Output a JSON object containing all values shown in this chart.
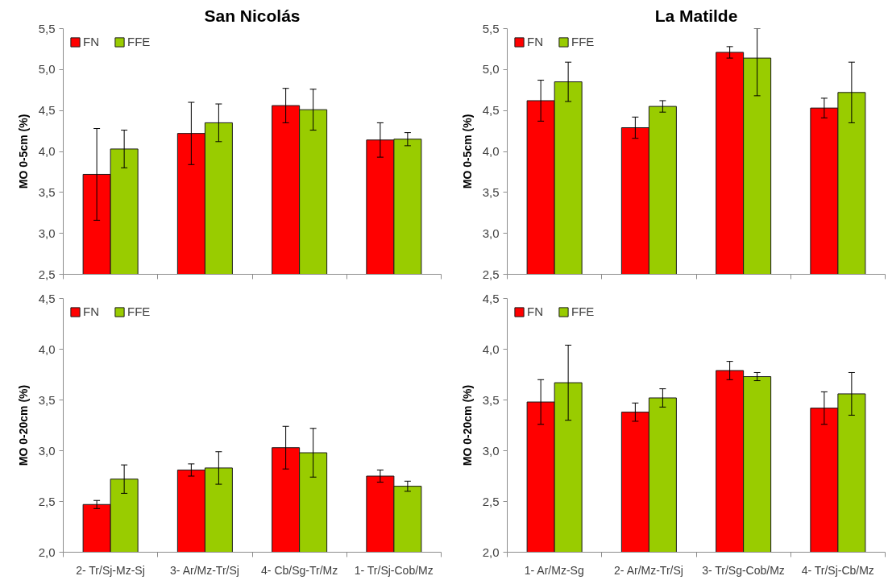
{
  "chart_data": [
    {
      "type": "bar",
      "title": "San Nicolás",
      "ylabel": "MO 0-5cm (%)",
      "categories": [
        null,
        null,
        null,
        null
      ],
      "series": [
        {
          "name": "FN",
          "color": "#ff0000",
          "values": [
            3.72,
            4.22,
            4.56,
            4.14
          ],
          "errors": [
            0.56,
            0.38,
            0.21,
            0.21
          ]
        },
        {
          "name": "FFE",
          "color": "#99cc00",
          "values": [
            4.03,
            4.35,
            4.51,
            4.15
          ],
          "errors": [
            0.23,
            0.23,
            0.25,
            0.08
          ]
        }
      ],
      "ylim": [
        2.5,
        5.5
      ],
      "yticks": [
        {
          "value": 2.5,
          "label": "2,5"
        },
        {
          "value": 3,
          "label": "3,0"
        },
        {
          "value": 3.5,
          "label": "3,5"
        },
        {
          "value": 4,
          "label": "4,0"
        },
        {
          "value": 4.5,
          "label": "4,5"
        },
        {
          "value": 5,
          "label": "5,0"
        },
        {
          "value": 5.5,
          "label": "5,5"
        }
      ],
      "legend": "top left"
    },
    {
      "type": "bar",
      "title": "La Matilde",
      "ylabel": "MO 0-5cm (%)",
      "categories": [
        null,
        null,
        null,
        null
      ],
      "series": [
        {
          "name": "FN",
          "color": "#ff0000",
          "values": [
            4.62,
            4.29,
            5.21,
            4.53
          ],
          "errors": [
            0.25,
            0.13,
            0.07,
            0.12
          ]
        },
        {
          "name": "FFE",
          "color": "#99cc00",
          "values": [
            4.85,
            4.55,
            5.14,
            4.72
          ],
          "errors": [
            0.24,
            0.07,
            [
              4.68,
              5.5
            ],
            0.37
          ]
        }
      ],
      "ylim": [
        2.5,
        5.5
      ],
      "yticks": [
        {
          "value": 2.5,
          "label": "2,5"
        },
        {
          "value": 3,
          "label": "3,0"
        },
        {
          "value": 3.5,
          "label": "3,5"
        },
        {
          "value": 4,
          "label": "4,0"
        },
        {
          "value": 4.5,
          "label": "4,5"
        },
        {
          "value": 5,
          "label": "5,0"
        },
        {
          "value": 5.5,
          "label": "5,5"
        }
      ],
      "legend": "top left"
    },
    {
      "type": "bar",
      "ylabel": "MO 0-20cm (%)",
      "categories": [
        "2- Tr/Sj-Mz-Sj",
        "3- Ar/Mz-Tr/Sj",
        "4- Cb/Sg-Tr/Mz",
        "1- Tr/Sj-Cob/Mz"
      ],
      "series": [
        {
          "name": "FN",
          "color": "#ff0000",
          "values": [
            2.47,
            2.81,
            3.03,
            2.75
          ],
          "errors": [
            0.04,
            0.06,
            0.21,
            0.06
          ]
        },
        {
          "name": "FFE",
          "color": "#99cc00",
          "values": [
            2.72,
            2.83,
            2.98,
            2.65
          ],
          "errors": [
            0.14,
            0.16,
            0.24,
            0.05
          ]
        }
      ],
      "ylim": [
        2,
        4.5
      ],
      "yticks": [
        {
          "value": 2,
          "label": "2,0"
        },
        {
          "value": 2.5,
          "label": "2,5"
        },
        {
          "value": 3,
          "label": "3,0"
        },
        {
          "value": 3.5,
          "label": "3,5"
        },
        {
          "value": 4,
          "label": "4,0"
        },
        {
          "value": 4.5,
          "label": "4,5"
        }
      ],
      "legend": "top left"
    },
    {
      "type": "bar",
      "ylabel": "MO 0-20cm (%)",
      "categories": [
        "1- Ar/Mz-Sg",
        "2- Ar/Mz-Tr/Sj",
        "3- Tr/Sg-Cob/Mz",
        "4- Tr/Sj-Cb/Mz"
      ],
      "series": [
        {
          "name": "FN",
          "color": "#ff0000",
          "values": [
            3.48,
            3.38,
            3.79,
            3.42
          ],
          "errors": [
            0.22,
            0.09,
            0.09,
            0.16
          ]
        },
        {
          "name": "FFE",
          "color": "#99cc00",
          "values": [
            3.67,
            3.52,
            3.73,
            3.56
          ],
          "errors": [
            0.37,
            0.09,
            0.04,
            0.21
          ]
        }
      ],
      "ylim": [
        2,
        4.5
      ],
      "yticks": [
        {
          "value": 2,
          "label": "2,0"
        },
        {
          "value": 2.5,
          "label": "2,5"
        },
        {
          "value": 3,
          "label": "3,0"
        },
        {
          "value": 3.5,
          "label": "3,5"
        },
        {
          "value": 4,
          "label": "4,0"
        },
        {
          "value": 4.5,
          "label": "4,5"
        }
      ],
      "legend": "top left"
    }
  ]
}
